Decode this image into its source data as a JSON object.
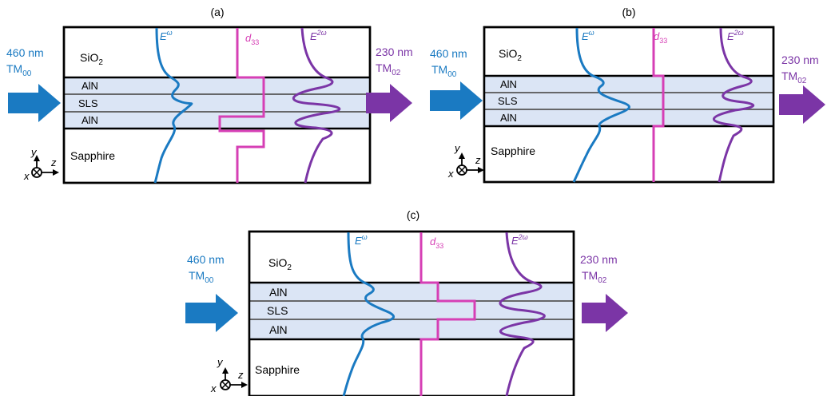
{
  "panels": [
    {
      "id": "a",
      "label": "(a)",
      "input_wavelength": "460 nm",
      "input_mode": "TM",
      "input_mode_sub": "00",
      "output_wavelength": "230 nm",
      "output_mode": "TM",
      "output_mode_sub": "02"
    },
    {
      "id": "b",
      "label": "(b)",
      "input_wavelength": "460 nm",
      "input_mode": "TM",
      "input_mode_sub": "00",
      "output_wavelength": "230 nm",
      "output_mode": "TM",
      "output_mode_sub": "02"
    },
    {
      "id": "c",
      "label": "(c)",
      "input_wavelength": "460 nm",
      "input_mode": "TM",
      "input_mode_sub": "00",
      "output_wavelength": "230 nm",
      "output_mode": "TM",
      "output_mode_sub": "02"
    }
  ],
  "layers": {
    "cladding_top": "SiO",
    "cladding_top_sub": "2",
    "top_core": "AlN",
    "middle_core": "SLS",
    "bottom_core": "AlN",
    "substrate": "Sapphire"
  },
  "curves": {
    "fundamental": "E",
    "fundamental_sup": "ω",
    "nonlinear": "d",
    "nonlinear_sub": "33",
    "second_harmonic": "E",
    "second_harmonic_sup": "2ω"
  },
  "axes": {
    "y": "y",
    "z": "z",
    "x": "x"
  },
  "colors": {
    "fundamental": "#1a7ac2",
    "nonlinear": "#d63fb5",
    "second_harmonic": "#7b35a6",
    "core_fill": "#dbe5f5"
  }
}
